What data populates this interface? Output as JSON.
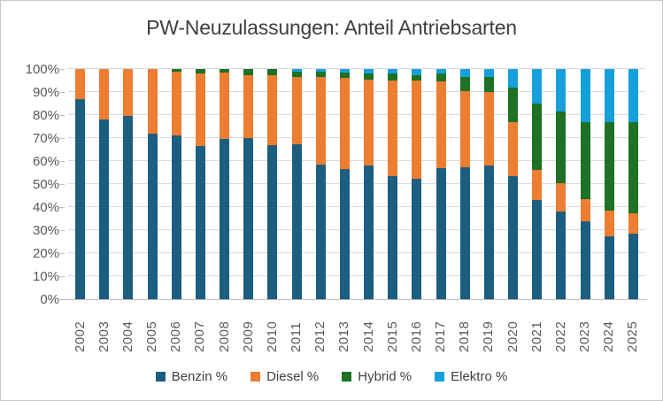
{
  "chart_data": {
    "type": "bar",
    "stacked": true,
    "normalized_to_100": true,
    "title": "PW-Neuzulassungen: Anteil Antriebsarten",
    "categories": [
      "2002",
      "2003",
      "2004",
      "2005",
      "2006",
      "2007",
      "2008",
      "2009",
      "2010",
      "2011",
      "2012",
      "2013",
      "2014",
      "2015",
      "2016",
      "2017",
      "2018",
      "2019",
      "2020",
      "2021",
      "2022",
      "2023",
      "2024",
      "2025"
    ],
    "series": [
      {
        "name": "Benzin %",
        "color": "#1b5e7f",
        "values": [
          87,
          78,
          79.5,
          72,
          71,
          66.5,
          69.5,
          70,
          67,
          67.5,
          58.5,
          56.5,
          58,
          53.5,
          52.5,
          57,
          57.5,
          58,
          53.5,
          43,
          38,
          34,
          27.5,
          28.5
        ]
      },
      {
        "name": "Diesel %",
        "color": "#ed7d31",
        "values": [
          13,
          22,
          20.5,
          28,
          28,
          31.5,
          29,
          27.5,
          30.5,
          29,
          38,
          39.5,
          37.5,
          41.5,
          42.5,
          37.5,
          33,
          32,
          23.5,
          13,
          12.5,
          9.5,
          11,
          9
        ]
      },
      {
        "name": "Hybrid %",
        "color": "#1e7125",
        "values": [
          0,
          0,
          0,
          0,
          1,
          2,
          1.5,
          2.5,
          2.5,
          2.5,
          2.5,
          2.5,
          2.5,
          3,
          2.5,
          3.5,
          6,
          6.5,
          15,
          29,
          31,
          33.5,
          38.5,
          39.5
        ]
      },
      {
        "name": "Elektro %",
        "color": "#16a0db",
        "values": [
          0,
          0,
          0,
          0,
          0,
          0,
          0,
          0,
          0,
          1,
          1,
          1.5,
          2,
          2,
          2.5,
          2,
          3.5,
          3.5,
          8,
          15,
          18.5,
          23,
          23,
          23
        ]
      }
    ],
    "ylim": [
      0,
      100
    ],
    "yticks": [
      {
        "v": 0,
        "label": "0%"
      },
      {
        "v": 10,
        "label": "10%"
      },
      {
        "v": 20,
        "label": "20%"
      },
      {
        "v": 30,
        "label": "30%"
      },
      {
        "v": 40,
        "label": "40%"
      },
      {
        "v": 50,
        "label": "50%"
      },
      {
        "v": 60,
        "label": "60%"
      },
      {
        "v": 70,
        "label": "70%"
      },
      {
        "v": 80,
        "label": "80%"
      },
      {
        "v": 90,
        "label": "90%"
      },
      {
        "v": 100,
        "label": "100%"
      }
    ],
    "grid": true,
    "legend_position": "bottom"
  },
  "colors": {
    "title_text": "#3f3f3f",
    "axis_text": "#595959",
    "gridline": "#d9d9d9",
    "axis_line": "#bfbfbf"
  }
}
